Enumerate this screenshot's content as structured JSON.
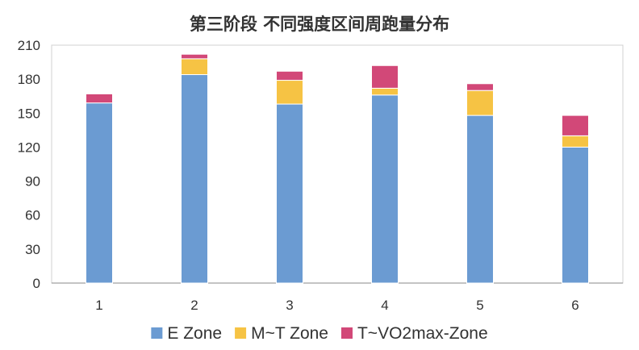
{
  "chart_data": {
    "type": "bar",
    "stacked": true,
    "title": "第三阶段 不同强度区间周跑量分布",
    "xlabel": "",
    "ylabel": "",
    "categories": [
      "1",
      "2",
      "3",
      "4",
      "5",
      "6"
    ],
    "ylim": [
      0,
      210
    ],
    "yticks": [
      "0",
      "30",
      "60",
      "90",
      "120",
      "150",
      "180",
      "210"
    ],
    "grid": false,
    "legend_position": "bottom",
    "series": [
      {
        "name": "E Zone",
        "color": "#6b9bd2",
        "values": [
          159,
          184,
          158,
          166,
          148,
          120
        ]
      },
      {
        "name": "M~T Zone",
        "color": "#f6c344",
        "values": [
          0,
          14,
          21,
          6,
          22,
          10
        ]
      },
      {
        "name": "T~VO2max-Zone",
        "color": "#d24878",
        "values": [
          8,
          4,
          8,
          20,
          6,
          18
        ]
      }
    ]
  }
}
